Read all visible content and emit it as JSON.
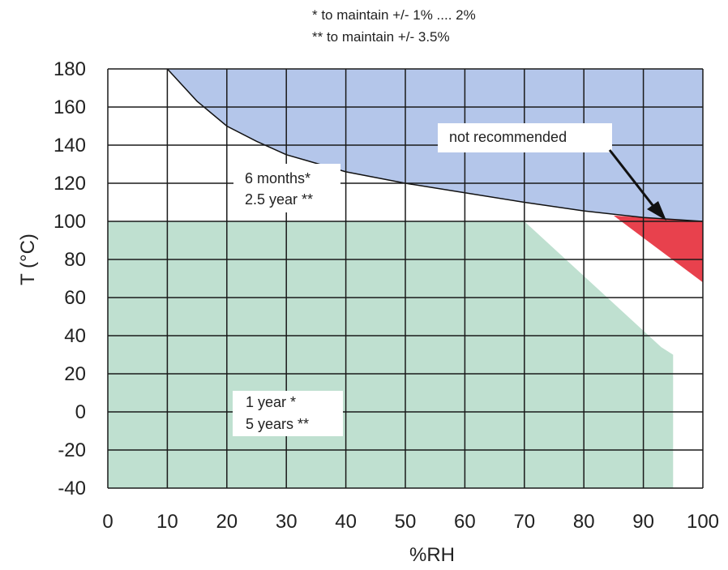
{
  "chart_data": {
    "type": "area",
    "xlabel": "%RH",
    "ylabel": "T (°C)",
    "xlim": [
      0,
      100
    ],
    "ylim": [
      -40,
      180
    ],
    "x_ticks": [
      "0",
      "10",
      "20",
      "30",
      "40",
      "50",
      "60",
      "70",
      "80",
      "90",
      "100"
    ],
    "y_ticks": [
      "-40",
      "-20",
      "0",
      "20",
      "40",
      "60",
      "80",
      "100",
      "120",
      "140",
      "160",
      "180"
    ],
    "grid": true,
    "notes": [
      "*  to maintain +/- 1% .... 2%",
      "** to maintain +/- 3.5%"
    ],
    "regions": [
      {
        "label_lines": [
          "6 months*",
          "2.5 year **"
        ],
        "color": "#b4c6ea",
        "points": [
          [
            10,
            180
          ],
          [
            15,
            163
          ],
          [
            20,
            150
          ],
          [
            25,
            142
          ],
          [
            30,
            135
          ],
          [
            40,
            126
          ],
          [
            50,
            120
          ],
          [
            60,
            115
          ],
          [
            70,
            110
          ],
          [
            80,
            105.5
          ],
          [
            90,
            102
          ],
          [
            100,
            100
          ],
          [
            100,
            180
          ]
        ]
      },
      {
        "label_lines": [
          "1 year *",
          "5 years **"
        ],
        "color": "#bfe0d0",
        "points": [
          [
            0,
            -40
          ],
          [
            0,
            100
          ],
          [
            70,
            100
          ],
          [
            93,
            34
          ],
          [
            95,
            30
          ],
          [
            95,
            -40
          ]
        ]
      },
      {
        "label_lines": [
          "not recommended"
        ],
        "color": "#e8414d",
        "points": [
          [
            85,
            103
          ],
          [
            100,
            100
          ],
          [
            100,
            68
          ]
        ]
      }
    ]
  }
}
